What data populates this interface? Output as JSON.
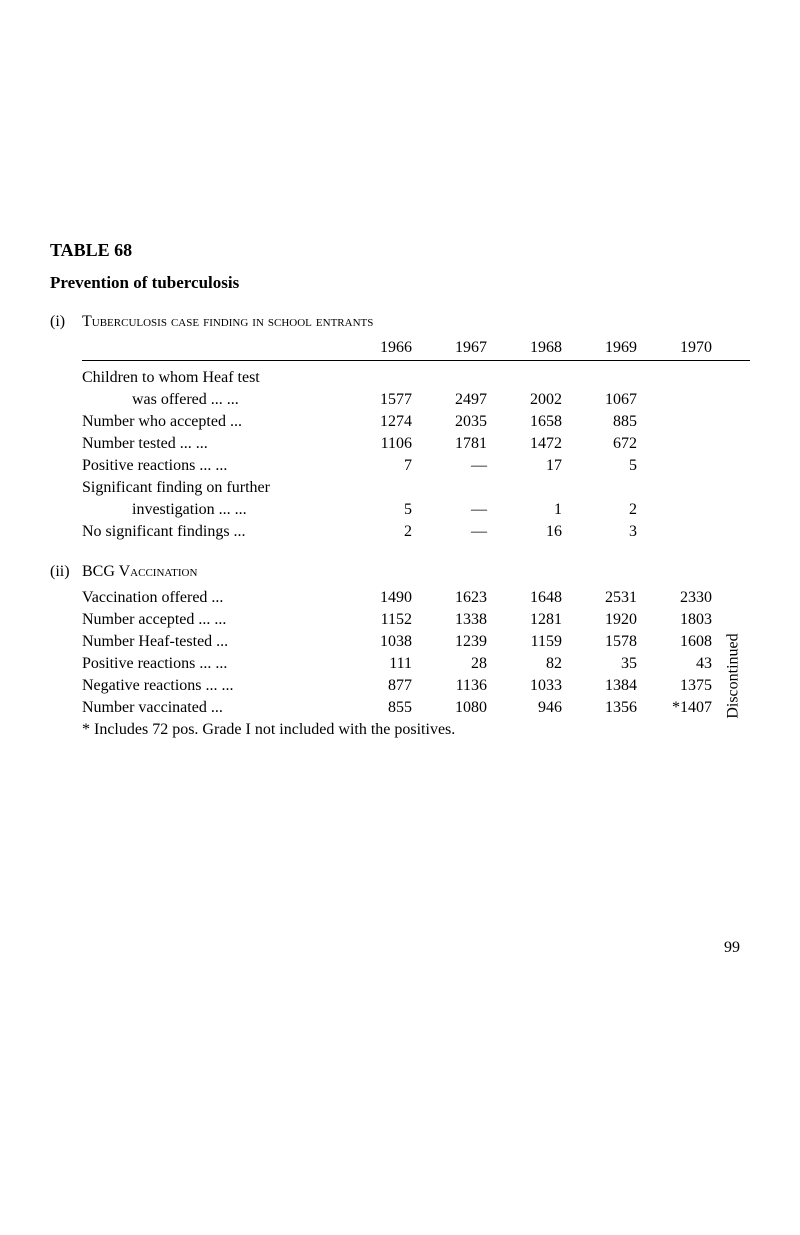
{
  "table_number": "TABLE 68",
  "prevention_title": "Prevention of tuberculosis",
  "section_i": {
    "num": "(i)",
    "title_regular": "Tuberculosis case finding in school entrants"
  },
  "years": {
    "y1966": "1966",
    "y1967": "1967",
    "y1968": "1968",
    "y1969": "1969",
    "y1970": "1970"
  },
  "section_i_rows": {
    "r0a": "Children to whom Heaf test",
    "r0b": "was offered   ...   ...",
    "r0": {
      "c1966": "1577",
      "c1967": "2497",
      "c1968": "2002",
      "c1969": "1067",
      "c1970": ""
    },
    "r1_label": "Number who accepted   ...",
    "r1": {
      "c1966": "1274",
      "c1967": "2035",
      "c1968": "1658",
      "c1969": "885",
      "c1970": ""
    },
    "r2_label": "Number tested      ...   ...",
    "r2": {
      "c1966": "1106",
      "c1967": "1781",
      "c1968": "1472",
      "c1969": "672",
      "c1970": ""
    },
    "r3_label": "Positive reactions ...   ...",
    "r3": {
      "c1966": "7",
      "c1967": "—",
      "c1968": "17",
      "c1969": "5",
      "c1970": ""
    },
    "r4a": "Significant finding on further",
    "r4b": "investigation  ...   ...",
    "r4": {
      "c1966": "5",
      "c1967": "—",
      "c1968": "1",
      "c1969": "2",
      "c1970": ""
    },
    "r5_label": "No significant findings   ...",
    "r5": {
      "c1966": "2",
      "c1967": "—",
      "c1968": "16",
      "c1969": "3",
      "c1970": ""
    }
  },
  "discontinued": "Discontinued",
  "section_ii": {
    "num": "(ii)",
    "title": "BCG Vaccination"
  },
  "section_ii_rows": {
    "r0_label": "Vaccination offered       ...",
    "r0": {
      "c1966": "1490",
      "c1967": "1623",
      "c1968": "1648",
      "c1969": "2531",
      "c1970": "2330"
    },
    "r1_label": "Number accepted ...   ...",
    "r1": {
      "c1966": "1152",
      "c1967": "1338",
      "c1968": "1281",
      "c1969": "1920",
      "c1970": "1803"
    },
    "r2_label": "Number Heaf-tested      ...",
    "r2": {
      "c1966": "1038",
      "c1967": "1239",
      "c1968": "1159",
      "c1969": "1578",
      "c1970": "1608"
    },
    "r3_label": "Positive reactions ...   ...",
    "r3": {
      "c1966": "111",
      "c1967": "28",
      "c1968": "82",
      "c1969": "35",
      "c1970": "43"
    },
    "r4_label": "Negative reactions ...   ...",
    "r4": {
      "c1966": "877",
      "c1967": "1136",
      "c1968": "1033",
      "c1969": "1384",
      "c1970": "1375"
    },
    "r5_label": "Number vaccinated        ...",
    "r5": {
      "c1966": "855",
      "c1967": "1080",
      "c1968": "946",
      "c1969": "1356",
      "c1970": "*1407"
    }
  },
  "footnote": "* Includes 72 pos. Grade I not included with the positives.",
  "page_num": "99"
}
